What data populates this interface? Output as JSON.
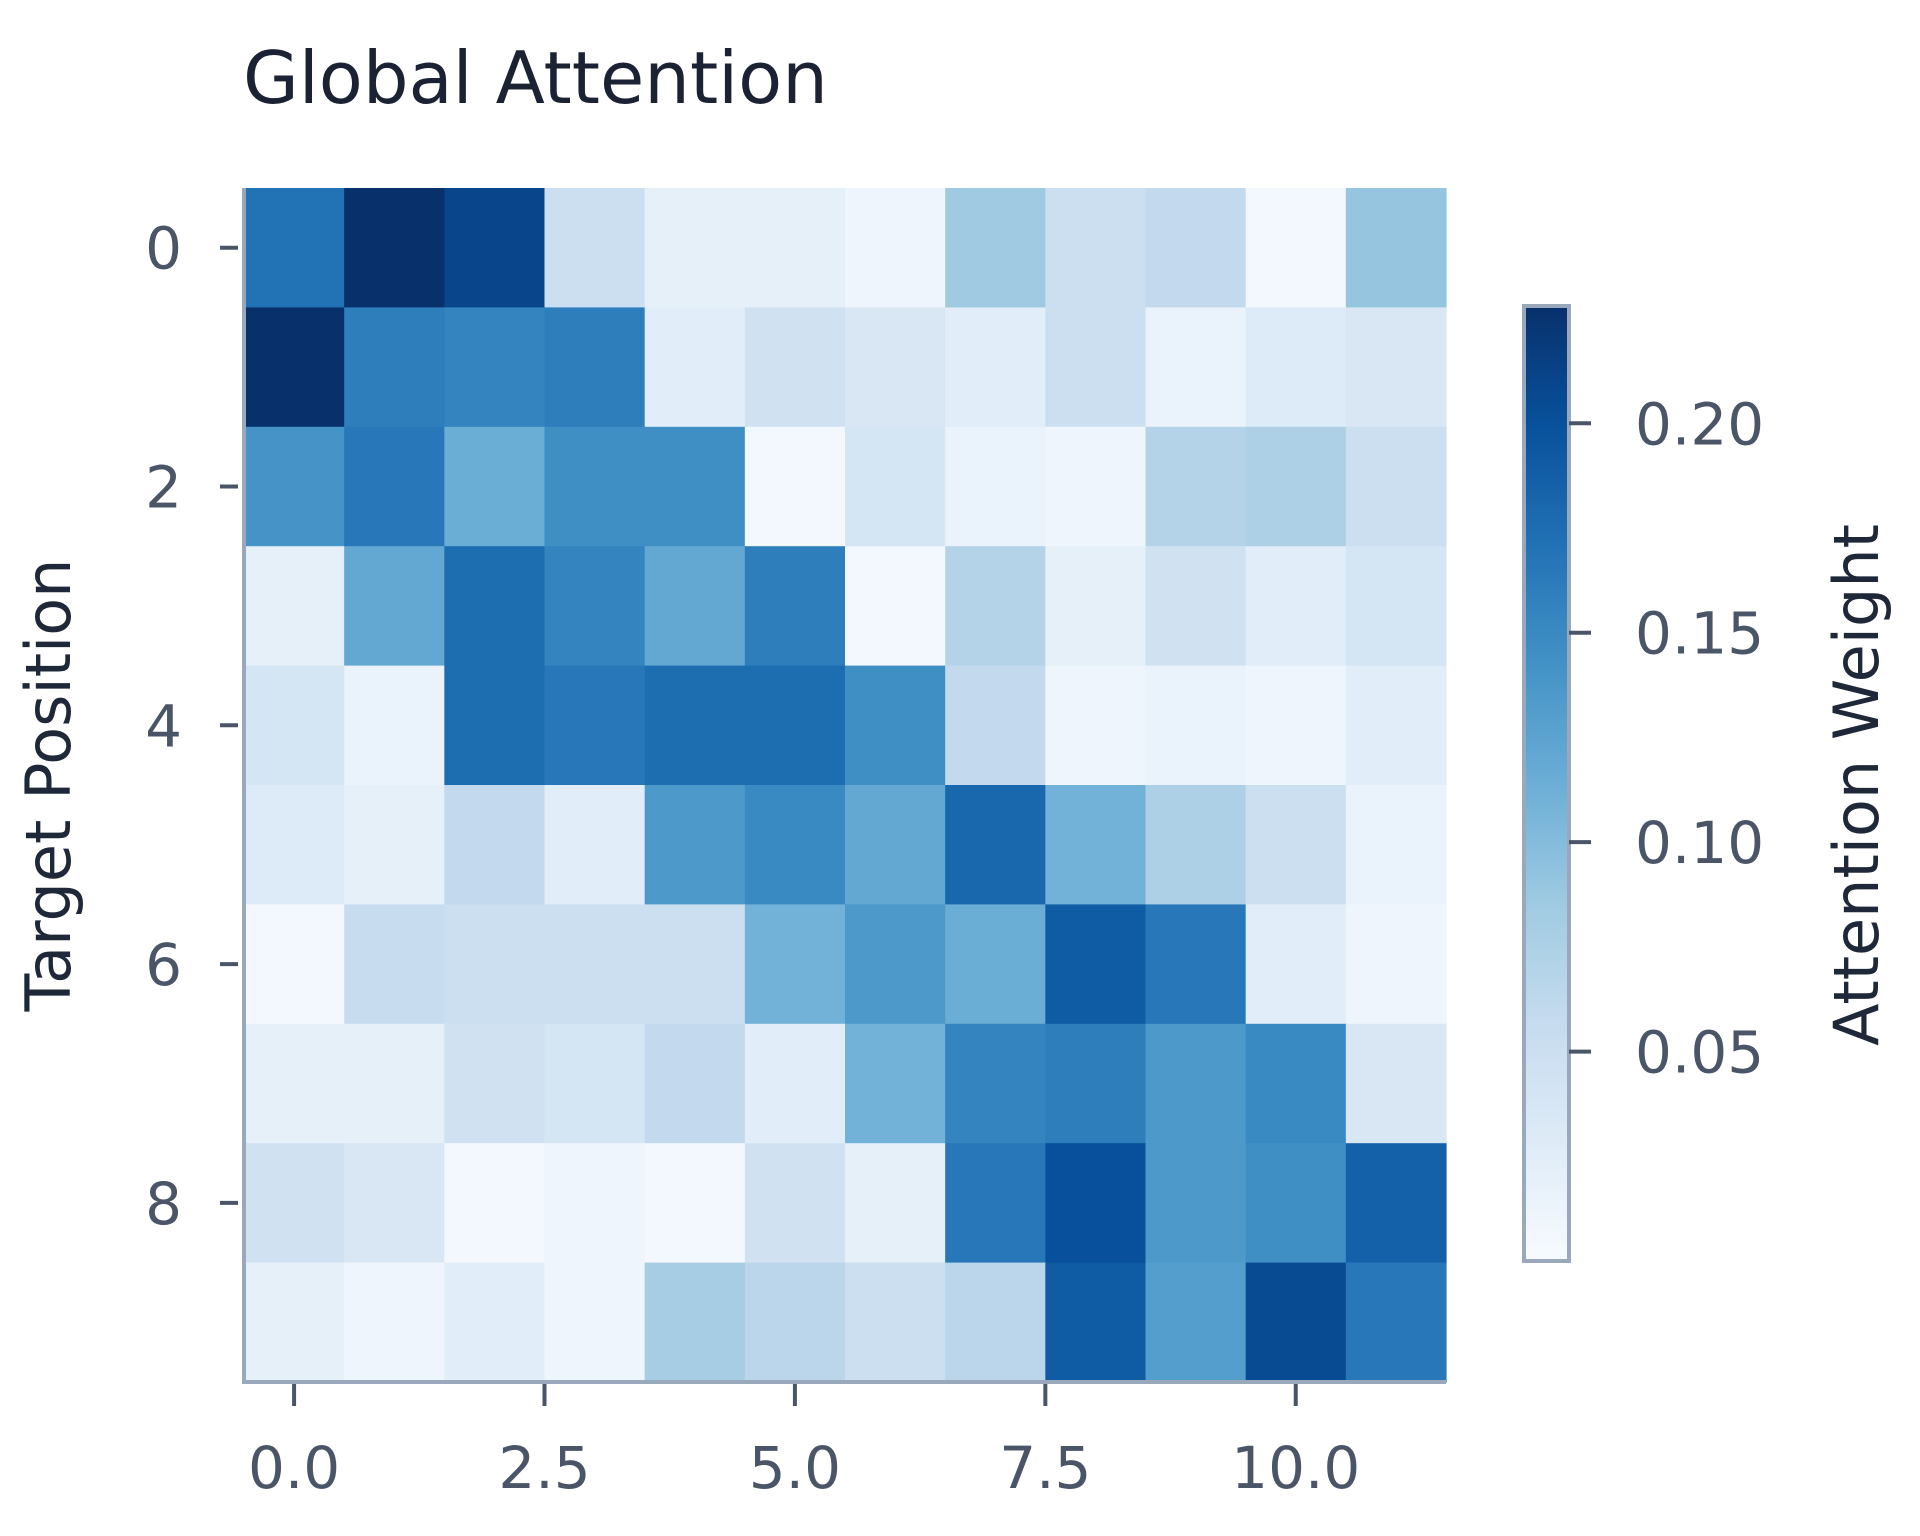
{
  "chart_data": {
    "type": "heatmap",
    "title": "Global Attention",
    "ylabel": "Target Position",
    "xlabel": "",
    "colorbar_label": "Attention Weight",
    "colormap": "Blues",
    "vmin": 0.0,
    "vmax": 0.228,
    "x_range": [
      -0.5,
      11.5
    ],
    "y_range": [
      -0.5,
      9.5
    ],
    "x_ticks": [
      0.0,
      2.5,
      5.0,
      7.5,
      10.0
    ],
    "x_tick_labels": [
      "0.0",
      "2.5",
      "5.0",
      "7.5",
      "10.0"
    ],
    "y_ticks": [
      0,
      2,
      4,
      6,
      8
    ],
    "y_tick_labels": [
      "0",
      "2",
      "4",
      "6",
      "8"
    ],
    "colorbar_ticks": [
      0.2,
      0.15,
      0.1,
      0.05
    ],
    "colorbar_tick_labels": [
      "0.20",
      "0.15",
      "0.10",
      "0.05"
    ],
    "matrix": [
      [
        0.17,
        0.23,
        0.21,
        0.05,
        0.02,
        0.02,
        0.01,
        0.085,
        0.05,
        0.06,
        0.005,
        0.09
      ],
      [
        0.23,
        0.16,
        0.155,
        0.16,
        0.025,
        0.045,
        0.035,
        0.025,
        0.05,
        0.015,
        0.03,
        0.035
      ],
      [
        0.14,
        0.165,
        0.115,
        0.145,
        0.145,
        0.005,
        0.04,
        0.015,
        0.01,
        0.07,
        0.075,
        0.05
      ],
      [
        0.02,
        0.12,
        0.175,
        0.155,
        0.12,
        0.16,
        0.005,
        0.07,
        0.02,
        0.045,
        0.025,
        0.04
      ],
      [
        0.04,
        0.015,
        0.175,
        0.165,
        0.175,
        0.175,
        0.145,
        0.06,
        0.01,
        0.015,
        0.01,
        0.025
      ],
      [
        0.03,
        0.02,
        0.06,
        0.025,
        0.135,
        0.15,
        0.12,
        0.18,
        0.11,
        0.075,
        0.05,
        0.015
      ],
      [
        0.005,
        0.055,
        0.05,
        0.05,
        0.05,
        0.11,
        0.135,
        0.115,
        0.19,
        0.165,
        0.025,
        0.01
      ],
      [
        0.02,
        0.02,
        0.045,
        0.04,
        0.06,
        0.025,
        0.11,
        0.155,
        0.16,
        0.135,
        0.15,
        0.035
      ],
      [
        0.045,
        0.035,
        0.005,
        0.01,
        0.005,
        0.045,
        0.02,
        0.165,
        0.2,
        0.135,
        0.145,
        0.185
      ],
      [
        0.02,
        0.01,
        0.025,
        0.01,
        0.08,
        0.065,
        0.05,
        0.065,
        0.19,
        0.13,
        0.205,
        0.165
      ]
    ]
  }
}
